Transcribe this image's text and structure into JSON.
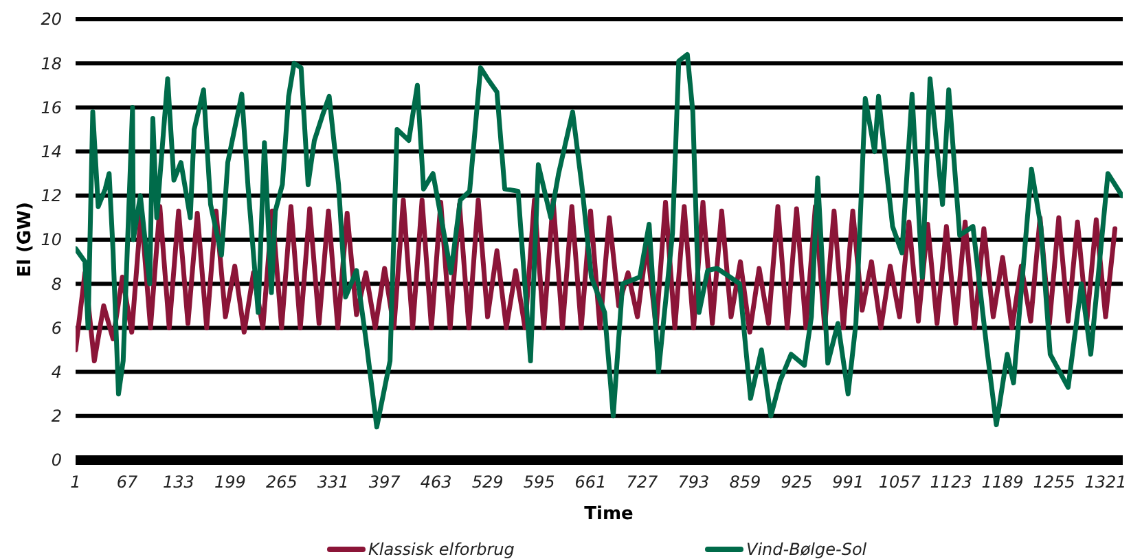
{
  "chart_data": {
    "type": "line",
    "xlabel": "Time",
    "ylabel": "El (GW)",
    "xlim": [
      1,
      1343
    ],
    "ylim": [
      0,
      20
    ],
    "xticks": [
      1,
      67,
      133,
      199,
      265,
      331,
      397,
      463,
      529,
      595,
      661,
      727,
      793,
      859,
      925,
      991,
      1057,
      1123,
      1189,
      1255,
      1321
    ],
    "yticks": [
      0,
      2,
      4,
      6,
      8,
      10,
      12,
      14,
      16,
      18,
      20
    ],
    "grid": "y",
    "legend": "bottom",
    "line_style": "solid",
    "series": [
      {
        "name": "Klassisk elforbrug",
        "color": "#8b1538",
        "x": [
          1,
          13,
          25,
          37,
          49,
          61,
          73,
          85,
          97,
          109,
          121,
          133,
          145,
          157,
          169,
          181,
          193,
          205,
          217,
          229,
          241,
          253,
          265,
          277,
          289,
          301,
          313,
          325,
          337,
          349,
          361,
          373,
          385,
          397,
          409,
          421,
          433,
          445,
          457,
          469,
          481,
          493,
          505,
          517,
          529,
          541,
          553,
          565,
          577,
          589,
          601,
          613,
          625,
          637,
          649,
          661,
          673,
          685,
          697,
          709,
          721,
          733,
          745,
          757,
          769,
          781,
          793,
          805,
          817,
          829,
          841,
          853,
          865,
          877,
          889,
          901,
          913,
          925,
          937,
          949,
          961,
          973,
          985,
          997,
          1009,
          1021,
          1033,
          1045,
          1057,
          1069,
          1081,
          1093,
          1105,
          1117,
          1129,
          1141,
          1153,
          1165,
          1177,
          1189,
          1201,
          1213,
          1225,
          1237,
          1249,
          1261,
          1273,
          1285,
          1297,
          1309,
          1321,
          1333
        ],
        "values": [
          5.0,
          8.5,
          4.5,
          7.0,
          5.5,
          8.3,
          5.8,
          11.3,
          6,
          11.5,
          6,
          11.3,
          6.2,
          11.2,
          6,
          11.3,
          6.5,
          8.8,
          5.8,
          8.5,
          6,
          11.3,
          6,
          11.5,
          6,
          11.4,
          6.2,
          11.3,
          6,
          11.2,
          6.6,
          8.5,
          6,
          8.7,
          6,
          11.8,
          6,
          11.8,
          6,
          11.7,
          6,
          11.6,
          6,
          11.8,
          6.5,
          9.5,
          6,
          8.6,
          6,
          11.8,
          6,
          11.8,
          6,
          11.5,
          6,
          11.3,
          6,
          11,
          7,
          8.5,
          6.5,
          9.8,
          6,
          11.7,
          6,
          11.5,
          6,
          11.7,
          6.2,
          11.3,
          6.5,
          9.0,
          5.8,
          8.7,
          6.2,
          11.5,
          6,
          11.4,
          6,
          11.5,
          6,
          11.3,
          6,
          11.3,
          6.8,
          9.0,
          6,
          8.8,
          6.5,
          10.8,
          6.3,
          10.7,
          6.2,
          10.6,
          6.2,
          10.8,
          6,
          10.5,
          6.5,
          9.2,
          6,
          8.8,
          6.3,
          11.0,
          6.2,
          11.0,
          6.3,
          10.8,
          6.3,
          10.9,
          6.5,
          10.5
        ]
      },
      {
        "name": "Vind-Bølge-Sol",
        "color": "#006b4a",
        "x": [
          1,
          13,
          17,
          23,
          30,
          39,
          44,
          49,
          56,
          62,
          74,
          75,
          84,
          96,
          100,
          105,
          119,
          127,
          136,
          148,
          153,
          165,
          174,
          188,
          196,
          214,
          222,
          235,
          243,
          252,
          257,
          266,
          274,
          281,
          290,
          299,
          307,
          318,
          326,
          338,
          347,
          361,
          373,
          387,
          404,
          413,
          428,
          439,
          447,
          459,
          472,
          482,
          494,
          506,
          520,
          529,
          541,
          551,
          568,
          584,
          594,
          610,
          620,
          638,
          650,
          662,
          679,
          690,
          702,
          724,
          736,
          748,
          766,
          774,
          785,
          792,
          800,
          811,
          823,
          840,
          852,
          866,
          880,
          892,
          904,
          918,
          935,
          944,
          952,
          965,
          978,
          991,
          1001,
          1013,
          1025,
          1030,
          1048,
          1060,
          1073,
          1086,
          1096,
          1112,
          1120,
          1134,
          1151,
          1169,
          1181,
          1195,
          1203,
          1226,
          1238,
          1250,
          1273,
          1290,
          1302,
          1324,
          1342
        ],
        "values": [
          9.6,
          9.0,
          6.0,
          15.8,
          11.5,
          12.3,
          13,
          9.5,
          3.0,
          4.5,
          16,
          10,
          12,
          8,
          15.5,
          11,
          17.3,
          12.7,
          13.5,
          11,
          15,
          16.8,
          11.6,
          9.3,
          13.5,
          16.6,
          12.4,
          6.7,
          14.4,
          7.6,
          11.3,
          12.5,
          16.5,
          18,
          17.8,
          12.5,
          14.5,
          15.7,
          16.5,
          12.5,
          7.4,
          8.6,
          5.5,
          1.5,
          4.5,
          15,
          14.5,
          17,
          12.3,
          13,
          10.5,
          8.5,
          11.8,
          12.2,
          17.8,
          17.3,
          16.7,
          12.3,
          12.2,
          4.5,
          13.4,
          11,
          13,
          15.8,
          12.4,
          8.3,
          6.7,
          2,
          8,
          8.3,
          10.7,
          4,
          10.3,
          18.1,
          18.4,
          15.8,
          6.7,
          8.6,
          8.7,
          8.3,
          8,
          2.8,
          5,
          2,
          3.6,
          4.8,
          4.3,
          6.5,
          12.8,
          4.4,
          6.2,
          3,
          6.2,
          16.4,
          14,
          16.5,
          10.6,
          9.4,
          16.6,
          8.3,
          17.3,
          11.6,
          16.8,
          10.2,
          10.6,
          5,
          1.6,
          4.8,
          3.5,
          13.2,
          10.6,
          4.8,
          3.3,
          8,
          4.8,
          13,
          12
        ]
      }
    ]
  }
}
